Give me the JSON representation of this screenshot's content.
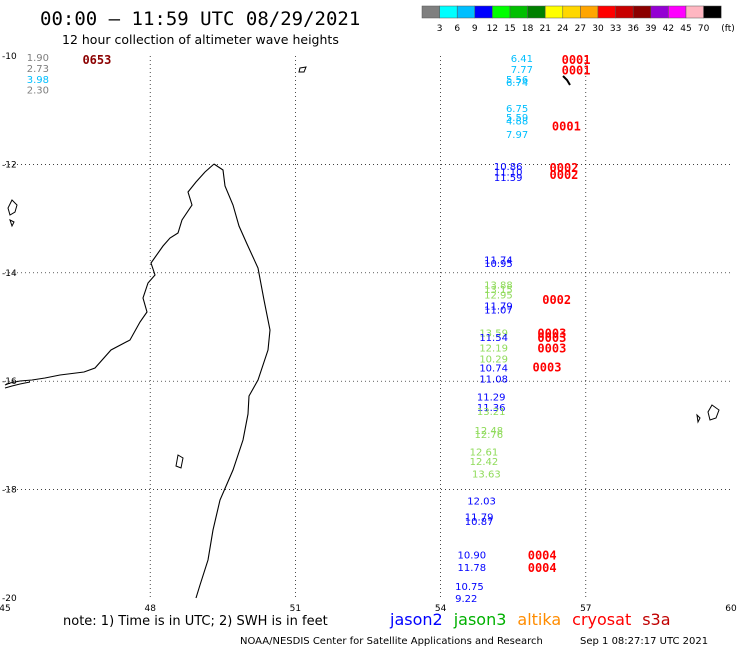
{
  "header": {
    "title": "00:00 – 11:59 UTC 08/29/2021",
    "subtitle": "12 hour collection of altimeter wave heights"
  },
  "color_scale": {
    "colors": [
      "#7f7f7f",
      "#00ffff",
      "#00bfff",
      "#0000ff",
      "#00ff00",
      "#00c000",
      "#008000",
      "#ffff00",
      "#ffd700",
      "#ffa500",
      "#ff0000",
      "#c80000",
      "#8b0000",
      "#9400d3",
      "#ff00ff",
      "#ffb6c1",
      "#000000"
    ],
    "labels": [
      "3",
      "6",
      "9",
      "12",
      "15",
      "18",
      "21",
      "24",
      "27",
      "30",
      "33",
      "36",
      "39",
      "42",
      "45",
      "70"
    ],
    "unit": "(ft)"
  },
  "map": {
    "lon_range": [
      45,
      60
    ],
    "lat_range": [
      -20,
      -10
    ],
    "x_ticks": [
      "45",
      "48",
      "51",
      "54",
      "57",
      "60"
    ],
    "y_ticks": [
      "-10",
      "-12",
      "-14",
      "-16",
      "-18",
      "-20"
    ],
    "grid": "dotted",
    "coastline_color": "#000000"
  },
  "observations": [
    {
      "value": "1.90",
      "color": "#7f7f7f",
      "lon": 45.45,
      "lat": -10.02
    },
    {
      "value": "2.73",
      "color": "#7f7f7f",
      "lon": 45.45,
      "lat": -10.22
    },
    {
      "value": "3.98",
      "color": "#00bfff",
      "lon": 45.45,
      "lat": -10.42
    },
    {
      "value": "2.30",
      "color": "#7f7f7f",
      "lon": 45.45,
      "lat": -10.62
    },
    {
      "value": "6.41",
      "color": "#00bfff",
      "lon": 55.45,
      "lat": -10.04
    },
    {
      "value": "7.77",
      "color": "#00bfff",
      "lon": 55.45,
      "lat": -10.24
    },
    {
      "value": "5.56",
      "color": "#00bfff",
      "lon": 55.35,
      "lat": -10.42
    },
    {
      "value": "6.74",
      "color": "#00bfff",
      "lon": 55.35,
      "lat": -10.48
    },
    {
      "value": "6.75",
      "color": "#00bfff",
      "lon": 55.35,
      "lat": -10.96
    },
    {
      "value": "5.59",
      "color": "#00bfff",
      "lon": 55.35,
      "lat": -11.13
    },
    {
      "value": "4.88",
      "color": "#00bfff",
      "lon": 55.35,
      "lat": -11.19
    },
    {
      "value": "7.97",
      "color": "#00bfff",
      "lon": 55.35,
      "lat": -11.44
    },
    {
      "value": "10.86",
      "color": "#0000ff",
      "lon": 55.1,
      "lat": -12.03
    },
    {
      "value": "11.10",
      "color": "#0000ff",
      "lon": 55.1,
      "lat": -12.13
    },
    {
      "value": "11.59",
      "color": "#0000ff",
      "lon": 55.1,
      "lat": -12.23
    },
    {
      "value": "11.74",
      "color": "#0000ff",
      "lon": 54.9,
      "lat": -13.75
    },
    {
      "value": "10.95",
      "color": "#0000ff",
      "lon": 54.9,
      "lat": -13.82
    },
    {
      "value": "13.88",
      "color": "#8fdb5a",
      "lon": 54.9,
      "lat": -14.22
    },
    {
      "value": "13.15",
      "color": "#8fdb5a",
      "lon": 54.9,
      "lat": -14.3
    },
    {
      "value": "12.95",
      "color": "#8fdb5a",
      "lon": 54.9,
      "lat": -14.4
    },
    {
      "value": "11.79",
      "color": "#0000ff",
      "lon": 54.9,
      "lat": -14.6
    },
    {
      "value": "11.07",
      "color": "#0000ff",
      "lon": 54.9,
      "lat": -14.68
    },
    {
      "value": "13.59",
      "color": "#8fdb5a",
      "lon": 54.8,
      "lat": -15.1
    },
    {
      "value": "11.54",
      "color": "#0000ff",
      "lon": 54.8,
      "lat": -15.18
    },
    {
      "value": "12.19",
      "color": "#8fdb5a",
      "lon": 54.8,
      "lat": -15.38
    },
    {
      "value": "10.29",
      "color": "#8fdb5a",
      "lon": 54.8,
      "lat": -15.58
    },
    {
      "value": "10.74",
      "color": "#0000ff",
      "lon": 54.8,
      "lat": -15.75
    },
    {
      "value": "11.08",
      "color": "#0000ff",
      "lon": 54.8,
      "lat": -15.95
    },
    {
      "value": "11.29",
      "color": "#0000ff",
      "lon": 54.75,
      "lat": -16.28
    },
    {
      "value": "11.36",
      "color": "#0000ff",
      "lon": 54.75,
      "lat": -16.48
    },
    {
      "value": "13.21",
      "color": "#8fdb5a",
      "lon": 54.75,
      "lat": -16.55
    },
    {
      "value": "12.48",
      "color": "#8fdb5a",
      "lon": 54.7,
      "lat": -16.9
    },
    {
      "value": "12.76",
      "color": "#8fdb5a",
      "lon": 54.7,
      "lat": -16.97
    },
    {
      "value": "12.61",
      "color": "#8fdb5a",
      "lon": 54.6,
      "lat": -17.3
    },
    {
      "value": "12.42",
      "color": "#8fdb5a",
      "lon": 54.6,
      "lat": -17.47
    },
    {
      "value": "13.63",
      "color": "#8fdb5a",
      "lon": 54.65,
      "lat": -17.7
    },
    {
      "value": "12.03",
      "color": "#0000ff",
      "lon": 54.55,
      "lat": -18.2
    },
    {
      "value": "11.79",
      "color": "#0000ff",
      "lon": 54.5,
      "lat": -18.5
    },
    {
      "value": "10.87",
      "color": "#0000ff",
      "lon": 54.5,
      "lat": -18.58
    },
    {
      "value": "10.90",
      "color": "#0000ff",
      "lon": 54.35,
      "lat": -19.2
    },
    {
      "value": "11.78",
      "color": "#0000ff",
      "lon": 54.35,
      "lat": -19.43
    },
    {
      "value": "10.75",
      "color": "#0000ff",
      "lon": 54.3,
      "lat": -19.78
    },
    {
      "value": "9.22",
      "color": "#0000ff",
      "lon": 54.3,
      "lat": -20.0
    }
  ],
  "time_labels": [
    {
      "text": "0653",
      "color": "#8b0000",
      "lon": 46.6,
      "lat": -10.07
    },
    {
      "text": "0001",
      "color": "#ff0000",
      "lon": 56.5,
      "lat": -10.07
    },
    {
      "text": "0001",
      "color": "#ff0000",
      "lon": 56.5,
      "lat": -10.27
    },
    {
      "text": "0001",
      "color": "#ff0000",
      "lon": 56.3,
      "lat": -11.3
    },
    {
      "text": "0002",
      "color": "#ff0000",
      "lon": 56.25,
      "lat": -12.07
    },
    {
      "text": "0002",
      "color": "#ff0000",
      "lon": 56.25,
      "lat": -12.2
    },
    {
      "text": "0002",
      "color": "#ff0000",
      "lon": 56.1,
      "lat": -14.5
    },
    {
      "text": "0003",
      "color": "#ff0000",
      "lon": 56.0,
      "lat": -15.12
    },
    {
      "text": "0003",
      "color": "#ff0000",
      "lon": 56.0,
      "lat": -15.2
    },
    {
      "text": "0003",
      "color": "#ff0000",
      "lon": 56.0,
      "lat": -15.4
    },
    {
      "text": "0003",
      "color": "#ff0000",
      "lon": 55.9,
      "lat": -15.75
    },
    {
      "text": "0004",
      "color": "#ff0000",
      "lon": 55.8,
      "lat": -19.22
    },
    {
      "text": "0004",
      "color": "#ff0000",
      "lon": 55.8,
      "lat": -19.45
    }
  ],
  "footer": {
    "note": "note: 1) Time is in UTC; 2) SWH is in feet",
    "legend": [
      {
        "label": "jason2",
        "color": "#0000ff"
      },
      {
        "label": "jason3",
        "color": "#00b000"
      },
      {
        "label": "altika",
        "color": "#ff8c00"
      },
      {
        "label": "cryosat",
        "color": "#ff0000"
      },
      {
        "label": "s3a",
        "color": "#c00000"
      }
    ],
    "credit_left": "NOAA/NESDIS Center for Satellite Applications and Research",
    "credit_right": "Sep  1 08:27:17 UTC 2021"
  }
}
